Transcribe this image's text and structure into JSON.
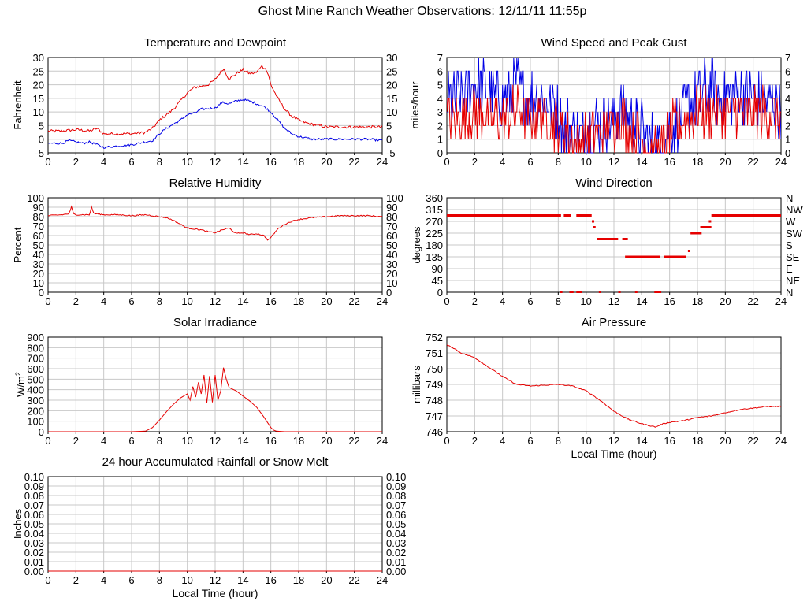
{
  "page": {
    "title": "Ghost Mine Ranch Weather Observations: 12/11/11 11:55p"
  },
  "colors": {
    "grid": "#c8c8c8",
    "primary": "#e60000",
    "secondary": "#0000e6"
  },
  "chart_data": [
    {
      "id": "temp",
      "type": "line",
      "title": "Temperature and Dewpoint",
      "xlabel": "",
      "ylabel": "Fahrenheit",
      "xlim": [
        0,
        24
      ],
      "ylim": [
        -5,
        30
      ],
      "xticks": [
        0,
        2,
        4,
        6,
        8,
        10,
        12,
        14,
        16,
        18,
        20,
        22,
        24
      ],
      "yticks": [
        -5,
        0,
        5,
        10,
        15,
        20,
        25,
        30
      ],
      "right_axis": true,
      "series": [
        {
          "color": "#e60000",
          "jitter": 0.5,
          "x": [
            0,
            1,
            2,
            3,
            3.5,
            4,
            5,
            6,
            7,
            7.5,
            8,
            9,
            9.5,
            10,
            10.5,
            11,
            11.5,
            12,
            12.3,
            12.6,
            13,
            13.5,
            14,
            14.5,
            15,
            15.3,
            15.6,
            15.8,
            16,
            16.5,
            17,
            17.5,
            18,
            18.5,
            19,
            19.5,
            20,
            21,
            22,
            23,
            24
          ],
          "y": [
            3,
            3,
            3.5,
            3,
            4,
            2,
            2,
            2,
            2.5,
            4,
            7,
            11,
            14,
            17,
            19,
            19.5,
            20,
            22,
            24,
            26,
            22,
            24,
            25.5,
            24,
            24.5,
            27,
            26,
            24,
            20,
            15,
            11,
            8.5,
            7,
            6,
            5.5,
            5,
            4.5,
            4.5,
            4.5,
            4.5,
            4.5
          ]
        },
        {
          "color": "#0000e6",
          "jitter": 0.4,
          "x": [
            0,
            1,
            1.5,
            2,
            2.5,
            3,
            3.5,
            4,
            5,
            6,
            7,
            7.5,
            8,
            8.5,
            9,
            9.5,
            10,
            10.5,
            11,
            12,
            12.5,
            13,
            13.5,
            14,
            14.5,
            15,
            15.5,
            16,
            16.5,
            17,
            17.5,
            18,
            18.5,
            19,
            20,
            21,
            22,
            23,
            24
          ],
          "y": [
            -1.5,
            -1.5,
            -0.5,
            -1,
            -1.5,
            -1,
            -2,
            -3,
            -2.5,
            -2,
            -1,
            -0.5,
            2,
            4,
            5.5,
            7,
            9,
            9.5,
            11,
            11.5,
            13.5,
            13,
            14,
            14.5,
            14,
            13,
            12,
            10,
            7,
            4,
            2,
            1,
            0.5,
            0,
            0,
            0,
            0,
            0,
            -0.5
          ]
        }
      ]
    },
    {
      "id": "wind",
      "type": "line",
      "title": "Wind Speed and Peak Gust",
      "xlabel": "",
      "ylabel": "miles/hour",
      "xlim": [
        0,
        24
      ],
      "ylim": [
        0,
        7
      ],
      "xticks": [
        0,
        2,
        4,
        6,
        8,
        10,
        12,
        14,
        16,
        18,
        20,
        22,
        24
      ],
      "yticks": [
        0,
        1,
        2,
        3,
        4,
        5,
        6,
        7
      ],
      "right_axis": true,
      "series": [
        {
          "color": "#0000e6",
          "noisy": true,
          "amp": 2.2,
          "x": [
            0,
            1,
            2,
            3,
            4,
            5,
            6,
            7,
            8,
            8.5,
            9,
            9.5,
            10,
            10.5,
            11,
            11.5,
            12,
            12.5,
            13,
            13.5,
            14,
            14.5,
            15,
            15.5,
            16,
            17,
            18,
            18.5,
            19,
            19.5,
            20,
            21,
            22,
            23,
            24
          ],
          "y": [
            3.5,
            4,
            5,
            4.5,
            4,
            5,
            4,
            4,
            3,
            2,
            1.5,
            1,
            1.5,
            2,
            2,
            2.5,
            2.5,
            3.5,
            2.5,
            2,
            1.5,
            1,
            0.5,
            0.5,
            2,
            3,
            4,
            4.5,
            5,
            4,
            4,
            4.5,
            4,
            4,
            3.5
          ]
        },
        {
          "color": "#e60000",
          "noisy": true,
          "amp": 1.8,
          "x": [
            0,
            1,
            2,
            3,
            4,
            5,
            6,
            7,
            8,
            8.5,
            9,
            9.5,
            10,
            10.5,
            11,
            11.5,
            12,
            12.5,
            13,
            13.5,
            14,
            14.5,
            15,
            15.5,
            16,
            17,
            18,
            19,
            20,
            21,
            22,
            23,
            24
          ],
          "y": [
            2.5,
            2.5,
            3,
            2.5,
            2.5,
            3,
            2.5,
            2.5,
            2,
            1.5,
            1,
            0.5,
            1,
            1.5,
            1.5,
            2,
            2,
            2.5,
            2,
            1.5,
            1,
            0.5,
            0,
            0,
            1.5,
            2.5,
            3,
            3,
            3,
            3,
            3,
            3,
            2.5
          ]
        }
      ]
    },
    {
      "id": "rh",
      "type": "line",
      "title": "Relative Humidity",
      "xlabel": "",
      "ylabel": "Percent",
      "xlim": [
        0,
        24
      ],
      "ylim": [
        0,
        100
      ],
      "xticks": [
        0,
        2,
        4,
        6,
        8,
        10,
        12,
        14,
        16,
        18,
        20,
        22,
        24
      ],
      "yticks": [
        0,
        10,
        20,
        30,
        40,
        50,
        60,
        70,
        80,
        90,
        100
      ],
      "right_axis": true,
      "series": [
        {
          "color": "#e60000",
          "jitter": 0.6,
          "x": [
            0,
            1,
            1.5,
            1.7,
            1.8,
            2,
            3,
            3.1,
            3.3,
            3.5,
            4,
            5,
            6,
            7,
            8,
            8.5,
            9,
            9.5,
            10,
            10.5,
            11,
            11.5,
            12,
            12.5,
            13,
            13.5,
            14,
            14.5,
            15,
            15.5,
            15.8,
            16,
            16.5,
            17,
            17.5,
            18,
            19,
            20,
            21,
            22,
            23,
            24
          ],
          "y": [
            81,
            82,
            83,
            91,
            83,
            82,
            82,
            91,
            83,
            83,
            82,
            82,
            81,
            82,
            80,
            79,
            76,
            72,
            68,
            67,
            66,
            64,
            63,
            66,
            68,
            62,
            63,
            61,
            62,
            60,
            55,
            58,
            67,
            72,
            75,
            77,
            79,
            80,
            81,
            81,
            81,
            80
          ]
        }
      ]
    },
    {
      "id": "wdir",
      "type": "scatter",
      "title": "Wind Direction",
      "xlabel": "",
      "ylabel": "degrees",
      "xlim": [
        0,
        24
      ],
      "ylim": [
        0,
        360
      ],
      "xticks": [
        0,
        2,
        4,
        6,
        8,
        10,
        12,
        14,
        16,
        18,
        20,
        22,
        24
      ],
      "yticks": [
        0,
        45,
        90,
        135,
        180,
        225,
        270,
        315,
        360
      ],
      "right_labels": [
        "N",
        "NE",
        "E",
        "SE",
        "S",
        "SW",
        "W",
        "NW",
        "N"
      ],
      "segments": [
        {
          "x": [
            0,
            8.2
          ],
          "y": 292.5
        },
        {
          "x": [
            8.4,
            8.9
          ],
          "y": 292.5
        },
        {
          "x": [
            9.3,
            10.4
          ],
          "y": 292.5
        },
        {
          "x": [
            10.8,
            12.3
          ],
          "y": 202.5
        },
        {
          "x": [
            12.6,
            13.0
          ],
          "y": 202.5
        },
        {
          "x": [
            12.8,
            15.3
          ],
          "y": 135
        },
        {
          "x": [
            15.6,
            17.2
          ],
          "y": 135
        },
        {
          "x": [
            17.5,
            18.3
          ],
          "y": 225
        },
        {
          "x": [
            18.2,
            19.0
          ],
          "y": 247.5
        },
        {
          "x": [
            19.0,
            24
          ],
          "y": 292.5
        },
        {
          "x": [
            8.1,
            8.3
          ],
          "y": 0
        },
        {
          "x": [
            8.8,
            9.1
          ],
          "y": 0
        },
        {
          "x": [
            9.3,
            9.7
          ],
          "y": 0
        },
        {
          "x": [
            14.9,
            15.4
          ],
          "y": 0
        }
      ],
      "points": [
        {
          "x": 10.5,
          "y": 270
        },
        {
          "x": 10.6,
          "y": 247.5
        },
        {
          "x": 11.0,
          "y": 0
        },
        {
          "x": 12.4,
          "y": 0
        },
        {
          "x": 13.6,
          "y": 0
        },
        {
          "x": 17.4,
          "y": 157.5
        },
        {
          "x": 18.9,
          "y": 270
        }
      ]
    },
    {
      "id": "solar",
      "type": "line",
      "title": "Solar Irradiance",
      "xlabel": "",
      "ylabel": "W/m2",
      "xlim": [
        0,
        24
      ],
      "ylim": [
        0,
        900
      ],
      "xticks": [
        0,
        2,
        4,
        6,
        8,
        10,
        12,
        14,
        16,
        18,
        20,
        22,
        24
      ],
      "yticks": [
        0,
        100,
        200,
        300,
        400,
        500,
        600,
        700,
        800,
        900
      ],
      "right_axis": false,
      "series": [
        {
          "color": "#e60000",
          "jitter": 0,
          "x": [
            0,
            6,
            7,
            7.5,
            8,
            8.5,
            9,
            9.5,
            10,
            10.2,
            10.4,
            10.6,
            10.8,
            11,
            11.2,
            11.4,
            11.6,
            11.8,
            12,
            12.2,
            12.4,
            12.6,
            12.8,
            13,
            13.5,
            14,
            14.5,
            15,
            15.5,
            16,
            16.2,
            16.4,
            17,
            24
          ],
          "y": [
            0,
            0,
            5,
            40,
            110,
            190,
            260,
            320,
            360,
            300,
            430,
            330,
            470,
            360,
            540,
            270,
            530,
            280,
            540,
            300,
            390,
            610,
            500,
            420,
            390,
            340,
            290,
            230,
            140,
            40,
            15,
            5,
            0,
            0
          ]
        }
      ]
    },
    {
      "id": "pressure",
      "type": "line",
      "title": "Air Pressure",
      "xlabel": "Local Time (hour)",
      "ylabel": "millibars",
      "xlim": [
        0,
        24
      ],
      "ylim": [
        746,
        752
      ],
      "xticks": [
        0,
        2,
        4,
        6,
        8,
        10,
        12,
        14,
        16,
        18,
        20,
        22,
        24
      ],
      "yticks": [
        746,
        747,
        748,
        749,
        750,
        751,
        752
      ],
      "right_axis": false,
      "series": [
        {
          "color": "#e60000",
          "jitter": 0.03,
          "x": [
            0,
            0.5,
            1,
            2,
            3,
            4,
            5,
            6,
            7,
            8,
            9,
            10,
            11,
            12,
            13,
            14,
            14.5,
            15,
            15.5,
            16,
            17,
            18,
            19,
            20,
            21,
            22,
            23,
            24
          ],
          "y": [
            751.5,
            751.3,
            751.0,
            750.7,
            750.1,
            749.5,
            749.0,
            748.9,
            748.95,
            749.0,
            748.9,
            748.6,
            748.0,
            747.3,
            746.8,
            746.5,
            746.4,
            746.3,
            746.5,
            746.6,
            746.7,
            746.9,
            747.0,
            747.2,
            747.4,
            747.5,
            747.6,
            747.6
          ]
        }
      ]
    },
    {
      "id": "rain",
      "type": "line",
      "title": "24 hour Accumulated Rainfall or Snow Melt",
      "xlabel": "Local Time (hour)",
      "ylabel": "Inches",
      "xlim": [
        0,
        24
      ],
      "ylim": [
        0,
        0.1
      ],
      "xticks": [
        0,
        2,
        4,
        6,
        8,
        10,
        12,
        14,
        16,
        18,
        20,
        22,
        24
      ],
      "yticks": [
        0,
        0.01,
        0.02,
        0.03,
        0.04,
        0.05,
        0.06,
        0.07,
        0.08,
        0.09,
        0.1
      ],
      "ytick_decimals": 2,
      "right_axis": true,
      "series": [
        {
          "color": "#e60000",
          "jitter": 0,
          "x": [
            0,
            24
          ],
          "y": [
            0,
            0
          ]
        }
      ]
    }
  ]
}
